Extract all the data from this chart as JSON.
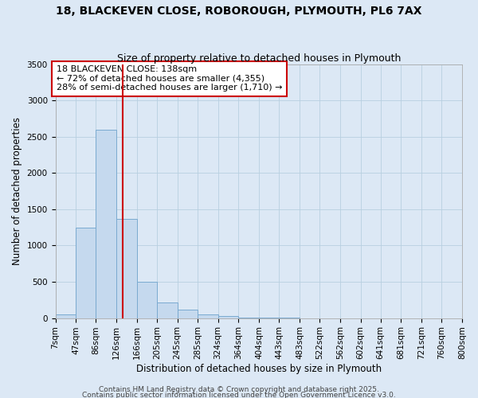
{
  "title_line1": "18, BLACKEVEN CLOSE, ROBOROUGH, PLYMOUTH, PL6 7AX",
  "title_line2": "Size of property relative to detached houses in Plymouth",
  "xlabel": "Distribution of detached houses by size in Plymouth",
  "ylabel": "Number of detached properties",
  "background_color": "#dce8f5",
  "bar_color": "#c5d9ee",
  "bar_edge_color": "#7aaad0",
  "bin_edges": [
    7,
    47,
    86,
    126,
    166,
    205,
    245,
    285,
    324,
    364,
    404,
    443,
    483,
    522,
    562,
    602,
    641,
    681,
    721,
    760,
    800
  ],
  "bin_labels": [
    "7sqm",
    "47sqm",
    "86sqm",
    "126sqm",
    "166sqm",
    "205sqm",
    "245sqm",
    "285sqm",
    "324sqm",
    "364sqm",
    "404sqm",
    "443sqm",
    "483sqm",
    "522sqm",
    "562sqm",
    "602sqm",
    "641sqm",
    "681sqm",
    "721sqm",
    "760sqm",
    "800sqm"
  ],
  "counts": [
    45,
    1250,
    2600,
    1365,
    505,
    210,
    115,
    50,
    25,
    10,
    5,
    2,
    1,
    0,
    0,
    0,
    0,
    0,
    0,
    0
  ],
  "ylim": [
    0,
    3500
  ],
  "yticks": [
    0,
    500,
    1000,
    1500,
    2000,
    2500,
    3000,
    3500
  ],
  "property_line_x": 138,
  "property_line_color": "#cc0000",
  "annotation_line1": "18 BLACKEVEN CLOSE: 138sqm",
  "annotation_line2": "← 72% of detached houses are smaller (4,355)",
  "annotation_line3": "28% of semi-detached houses are larger (1,710) →",
  "annotation_box_color": "#ffffff",
  "annotation_box_edge": "#cc0000",
  "footnote1": "Contains HM Land Registry data © Crown copyright and database right 2025.",
  "footnote2": "Contains public sector information licensed under the Open Government Licence v3.0.",
  "grid_color": "#b8cfe0",
  "title_fontsize": 10,
  "subtitle_fontsize": 9,
  "axis_label_fontsize": 8.5,
  "tick_fontsize": 7.5,
  "annotation_fontsize": 8,
  "footnote_fontsize": 6.5
}
